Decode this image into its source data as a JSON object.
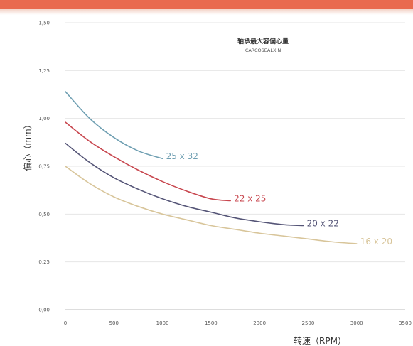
{
  "chart_data": {
    "type": "line",
    "title": "轴承最大容偏心量",
    "subtitle": "CARCOSEALXIN",
    "xlabel": "转速（RPM）",
    "ylabel": "偏心（mm）",
    "xlim": [
      0,
      3500
    ],
    "ylim": [
      0,
      1.5
    ],
    "x_ticks": [
      "0",
      "500",
      "1000",
      "1500",
      "2000",
      "2500",
      "3000",
      "3500"
    ],
    "y_ticks": [
      "0,00",
      "0,25",
      "0,50",
      "0,75",
      "1,00",
      "1,25",
      "1,50"
    ],
    "grid": true,
    "series": [
      {
        "name": "25 x 32",
        "color": "#6f9fb2",
        "x": [
          0,
          250,
          500,
          750,
          1000
        ],
        "y": [
          1.14,
          1.0,
          0.9,
          0.83,
          0.79
        ]
      },
      {
        "name": "22 x 25",
        "color": "#c8474f",
        "x": [
          0,
          250,
          500,
          750,
          1000,
          1250,
          1500,
          1700
        ],
        "y": [
          0.98,
          0.88,
          0.8,
          0.73,
          0.67,
          0.62,
          0.58,
          0.57
        ]
      },
      {
        "name": "20 x 22",
        "color": "#555577",
        "x": [
          0,
          250,
          500,
          750,
          1000,
          1250,
          1500,
          1750,
          2000,
          2250,
          2450
        ],
        "y": [
          0.87,
          0.77,
          0.69,
          0.63,
          0.58,
          0.54,
          0.51,
          0.48,
          0.46,
          0.445,
          0.44
        ]
      },
      {
        "name": "16 x 20",
        "color": "#d8c59a",
        "x": [
          0,
          250,
          500,
          750,
          1000,
          1250,
          1500,
          1750,
          2000,
          2250,
          2500,
          2750,
          3000
        ],
        "y": [
          0.75,
          0.66,
          0.59,
          0.54,
          0.5,
          0.47,
          0.44,
          0.42,
          0.4,
          0.385,
          0.37,
          0.355,
          0.345
        ]
      }
    ]
  }
}
